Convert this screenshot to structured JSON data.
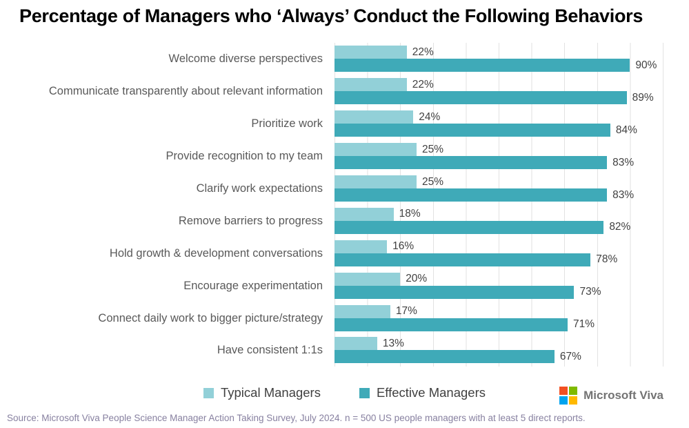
{
  "title": "Percentage of Managers who ‘Always’ Conduct the Following Behaviors",
  "chart_data": {
    "type": "bar",
    "orientation": "horizontal",
    "title": "Percentage of Managers who ‘Always’ Conduct the Following Behaviors",
    "categories": [
      "Welcome diverse perspectives",
      "Communicate transparently about relevant information",
      "Prioritize work",
      "Provide recognition to my team",
      "Clarify work expectations",
      "Remove barriers to progress",
      "Hold growth & development conversations",
      "Encourage experimentation",
      "Connect daily work to bigger picture/strategy",
      "Have consistent 1:1s"
    ],
    "series": [
      {
        "name": "Typical Managers",
        "color": "#92d0d8",
        "values": [
          22,
          22,
          24,
          25,
          25,
          18,
          16,
          20,
          17,
          13
        ],
        "labels": [
          "22%",
          "22%",
          "24%",
          "25%",
          "25%",
          "18%",
          "16%",
          "20%",
          "17%",
          "13%"
        ]
      },
      {
        "name": "Effective Managers",
        "color": "#3faab8",
        "values": [
          90,
          89,
          84,
          83,
          83,
          82,
          78,
          73,
          71,
          67
        ],
        "labels": [
          "90%",
          "89%",
          "84%",
          "83%",
          "83%",
          "82%",
          "78%",
          "73%",
          "71%",
          "67%"
        ]
      }
    ],
    "xlim": [
      0,
      100
    ],
    "gridline_step": 10,
    "grid": true,
    "legend_position": "bottom",
    "gridline_color": "#e2e2e2"
  },
  "footer": {
    "source": "Source: Microsoft Viva People Science Manager Action Taking Survey, July 2024. n = 500 US people managers with at least 5 direct reports."
  },
  "branding": {
    "text": "Microsoft Viva",
    "logo_colors": {
      "red": "#f25022",
      "green": "#7fba00",
      "blue": "#00a4ef",
      "yellow": "#ffb900"
    }
  }
}
